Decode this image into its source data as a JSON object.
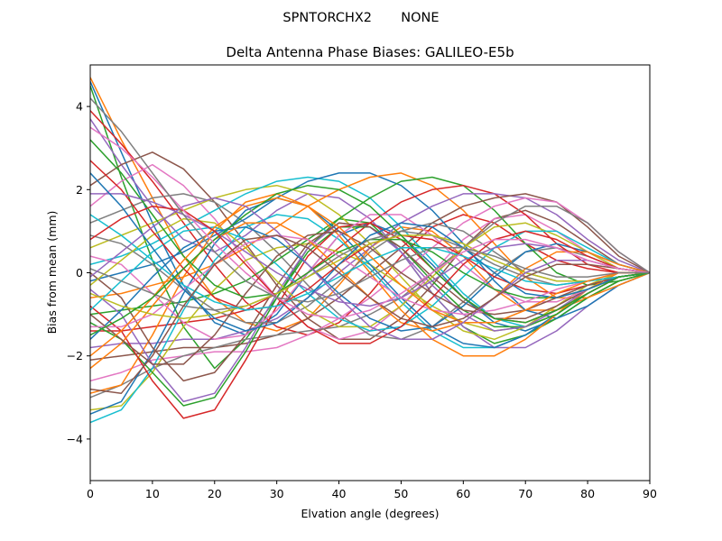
{
  "figure": {
    "suptitle": "SPNTORCHX2       NONE"
  },
  "chart_data": {
    "type": "line",
    "title": "Delta Antenna Phase Biases: GALILEO-E5b",
    "xlabel": "Elvation angle (degrees)",
    "ylabel": "Bias from mean (mm)",
    "xlim": [
      0,
      90
    ],
    "ylim": [
      -5,
      5
    ],
    "xticks": [
      0,
      10,
      20,
      30,
      40,
      50,
      60,
      70,
      80,
      90
    ],
    "yticks": [
      -4,
      -2,
      0,
      2,
      4
    ],
    "xtick_labels": [
      "0",
      "10",
      "20",
      "30",
      "40",
      "50",
      "60",
      "70",
      "80",
      "90"
    ],
    "ytick_labels": [
      "−4",
      "−2",
      "0",
      "2",
      "4"
    ],
    "grid": false,
    "legend": "none",
    "color_cycle": [
      "#1f77b4",
      "#ff7f0e",
      "#2ca02c",
      "#d62728",
      "#9467bd",
      "#8c564b",
      "#e377c2",
      "#7f7f7f",
      "#bcbd22",
      "#17becf"
    ],
    "x": [
      0,
      5,
      10,
      15,
      20,
      25,
      30,
      35,
      40,
      45,
      50,
      55,
      60,
      65,
      70,
      75,
      80,
      85,
      90
    ],
    "series": [
      {
        "values": [
          4.6,
          2.9,
          1.2,
          -0.3,
          -1.2,
          -1.5,
          -1.0,
          0.0,
          0.9,
          1.2,
          0.9,
          0.2,
          -0.6,
          -1.2,
          -1.4,
          -1.1,
          -0.6,
          -0.2,
          0.0
        ]
      },
      {
        "values": [
          4.7,
          3.2,
          1.8,
          0.4,
          -0.6,
          -1.2,
          -1.4,
          -1.1,
          -0.3,
          0.6,
          1.1,
          1.0,
          0.4,
          -0.4,
          -0.9,
          -0.9,
          -0.6,
          -0.2,
          0.0
        ]
      },
      {
        "values": [
          4.5,
          2.3,
          0.3,
          -1.3,
          -2.3,
          -1.6,
          -0.6,
          0.6,
          1.3,
          1.2,
          0.5,
          -0.5,
          -1.3,
          -1.7,
          -1.5,
          -1.1,
          -0.6,
          -0.2,
          0.0
        ]
      },
      {
        "values": [
          3.9,
          3.1,
          2.2,
          1.2,
          0.2,
          -0.7,
          -1.3,
          -1.5,
          -1.2,
          -0.5,
          0.4,
          1.1,
          1.4,
          1.2,
          0.7,
          0.3,
          0.1,
          0.0,
          0.0
        ]
      },
      {
        "values": [
          3.7,
          2.6,
          1.6,
          0.8,
          0.5,
          0.9,
          1.5,
          1.9,
          1.8,
          1.3,
          0.5,
          -0.5,
          -1.3,
          -1.8,
          -1.8,
          -1.4,
          -0.8,
          -0.3,
          0.0
        ]
      },
      {
        "values": [
          2.1,
          2.6,
          2.9,
          2.5,
          1.7,
          0.7,
          -0.3,
          -1.1,
          -1.6,
          -1.6,
          -1.1,
          -0.3,
          0.6,
          1.3,
          1.5,
          1.2,
          0.7,
          0.2,
          0.0
        ]
      },
      {
        "values": [
          1.6,
          2.2,
          2.6,
          2.1,
          1.3,
          0.3,
          -0.6,
          -1.3,
          -1.6,
          -1.4,
          -0.8,
          0.0,
          0.8,
          1.3,
          1.4,
          1.0,
          0.5,
          0.1,
          0.0
        ]
      },
      {
        "values": [
          1.2,
          1.5,
          1.8,
          1.9,
          1.7,
          1.2,
          0.5,
          -0.3,
          -1.0,
          -1.5,
          -1.6,
          -1.3,
          -0.7,
          0.0,
          0.5,
          0.6,
          0.4,
          0.1,
          0.0
        ]
      },
      {
        "values": [
          0.6,
          0.9,
          1.2,
          1.5,
          1.8,
          2.0,
          2.1,
          1.9,
          1.4,
          0.7,
          -0.1,
          -0.9,
          -1.4,
          -1.6,
          -1.3,
          -0.8,
          -0.3,
          0.0,
          0.0
        ]
      },
      {
        "values": [
          0.2,
          0.4,
          0.7,
          1.1,
          1.5,
          1.9,
          2.2,
          2.3,
          2.2,
          1.8,
          1.1,
          0.3,
          -0.5,
          -1.1,
          -1.3,
          -1.0,
          -0.5,
          -0.1,
          0.0
        ]
      },
      {
        "values": [
          -0.2,
          0.0,
          0.2,
          0.5,
          0.9,
          1.3,
          1.8,
          2.2,
          2.4,
          2.4,
          2.1,
          1.5,
          0.7,
          -0.2,
          -0.9,
          -1.1,
          -0.8,
          -0.3,
          0.0
        ]
      },
      {
        "values": [
          -0.6,
          -0.5,
          -0.3,
          -0.1,
          0.2,
          0.6,
          1.1,
          1.6,
          2.0,
          2.3,
          2.4,
          2.1,
          1.5,
          0.7,
          -0.1,
          -0.6,
          -0.6,
          -0.3,
          0.0
        ]
      },
      {
        "values": [
          -1.0,
          -0.9,
          -0.8,
          -0.7,
          -0.5,
          -0.2,
          0.3,
          0.8,
          1.3,
          1.8,
          2.2,
          2.3,
          2.1,
          1.5,
          0.7,
          0.0,
          -0.3,
          -0.2,
          0.0
        ]
      },
      {
        "values": [
          -1.4,
          -1.4,
          -1.3,
          -1.2,
          -1.1,
          -0.9,
          -0.5,
          0.0,
          0.6,
          1.2,
          1.7,
          2.0,
          2.1,
          1.9,
          1.4,
          0.7,
          0.2,
          0.0,
          0.0
        ]
      },
      {
        "values": [
          -1.8,
          -1.7,
          -1.7,
          -1.6,
          -1.6,
          -1.4,
          -1.1,
          -0.6,
          0.0,
          0.6,
          1.2,
          1.6,
          1.9,
          1.9,
          1.8,
          1.4,
          0.8,
          0.3,
          0.0
        ]
      },
      {
        "values": [
          -2.1,
          -2.0,
          -1.9,
          -1.8,
          -1.8,
          -1.7,
          -1.5,
          -1.1,
          -0.6,
          0.0,
          0.6,
          1.2,
          1.6,
          1.8,
          1.9,
          1.7,
          1.1,
          0.4,
          0.0
        ]
      },
      {
        "values": [
          -2.6,
          -2.4,
          -2.1,
          -2.0,
          -1.9,
          -1.9,
          -1.8,
          -1.5,
          -1.1,
          -0.6,
          0.0,
          0.6,
          1.2,
          1.6,
          1.8,
          1.7,
          1.2,
          0.5,
          0.0
        ]
      },
      {
        "values": [
          -3.0,
          -2.7,
          -2.3,
          -2.0,
          -1.8,
          -1.6,
          -1.5,
          -1.4,
          -1.3,
          -1.0,
          -0.6,
          0.0,
          0.6,
          1.2,
          1.6,
          1.6,
          1.2,
          0.5,
          0.0
        ]
      },
      {
        "values": [
          -3.3,
          -3.2,
          -2.4,
          -1.3,
          -0.4,
          0.3,
          0.6,
          0.7,
          0.5,
          0.2,
          -0.3,
          -0.8,
          -1.2,
          -1.4,
          -1.3,
          -1.0,
          -0.5,
          -0.1,
          0.0
        ]
      },
      {
        "values": [
          -3.6,
          -3.3,
          -2.3,
          -0.9,
          0.3,
          1.1,
          1.4,
          1.3,
          0.8,
          0.1,
          -0.7,
          -1.4,
          -1.8,
          -1.8,
          -1.5,
          -1.0,
          -0.5,
          -0.1,
          0.0
        ]
      },
      {
        "values": [
          -3.4,
          -3.1,
          -1.9,
          -0.5,
          0.7,
          1.5,
          1.8,
          1.6,
          1.0,
          0.2,
          -0.6,
          -1.3,
          -1.7,
          -1.8,
          -1.5,
          -1.0,
          -0.5,
          -0.1,
          0.0
        ]
      },
      {
        "values": [
          -2.9,
          -2.7,
          -1.5,
          -0.1,
          1.0,
          1.7,
          1.9,
          1.6,
          0.9,
          0.0,
          -0.9,
          -1.6,
          -2.0,
          -2.0,
          -1.6,
          -1.0,
          -0.4,
          0.0,
          0.0
        ]
      },
      {
        "values": [
          -1.2,
          -1.6,
          -2.4,
          -3.2,
          -3.0,
          -1.9,
          -0.6,
          0.5,
          1.1,
          1.1,
          0.6,
          -0.2,
          -0.9,
          -1.3,
          -1.3,
          -1.0,
          -0.5,
          -0.1,
          0.0
        ]
      },
      {
        "values": [
          -0.8,
          -1.4,
          -2.6,
          -3.5,
          -3.3,
          -2.1,
          -0.8,
          0.4,
          1.1,
          1.2,
          0.8,
          0.1,
          -0.6,
          -1.1,
          -1.2,
          -0.9,
          -0.5,
          -0.1,
          0.0
        ]
      },
      {
        "values": [
          -0.4,
          -1.0,
          -2.2,
          -3.1,
          -2.9,
          -1.8,
          -0.5,
          0.6,
          1.2,
          1.1,
          0.5,
          -0.3,
          -1.0,
          -1.4,
          -1.3,
          -0.9,
          -0.4,
          -0.1,
          0.0
        ]
      },
      {
        "values": [
          0.0,
          -0.6,
          -1.8,
          -2.6,
          -2.4,
          -1.5,
          -0.3,
          0.7,
          1.2,
          1.1,
          0.6,
          -0.1,
          -0.7,
          -1.1,
          -1.1,
          -0.8,
          -0.4,
          -0.1,
          0.0
        ]
      },
      {
        "values": [
          0.4,
          0.2,
          -0.5,
          -1.2,
          -1.6,
          -1.5,
          -0.9,
          0.0,
          0.9,
          1.4,
          1.4,
          0.9,
          0.2,
          -0.4,
          -0.7,
          -0.7,
          -0.4,
          -0.1,
          0.0
        ]
      },
      {
        "values": [
          0.9,
          0.7,
          0.2,
          -0.4,
          -0.9,
          -1.2,
          -1.2,
          -0.8,
          -0.2,
          0.5,
          1.0,
          1.2,
          1.0,
          0.5,
          0.0,
          -0.2,
          -0.2,
          -0.1,
          0.0
        ]
      },
      {
        "values": [
          -0.3,
          0.3,
          0.9,
          1.3,
          1.2,
          0.6,
          -0.2,
          -0.9,
          -1.3,
          -1.3,
          -0.8,
          -0.1,
          0.6,
          1.1,
          1.2,
          0.9,
          0.5,
          0.1,
          0.0
        ]
      },
      {
        "values": [
          -0.9,
          -0.2,
          0.5,
          1.0,
          1.1,
          0.8,
          0.2,
          -0.5,
          -1.1,
          -1.4,
          -1.3,
          -0.8,
          -0.1,
          0.6,
          1.0,
          1.0,
          0.6,
          0.2,
          0.0
        ]
      },
      {
        "values": [
          -1.6,
          -0.9,
          -0.1,
          0.6,
          1.0,
          1.1,
          0.8,
          0.2,
          -0.5,
          -1.1,
          -1.4,
          -1.3,
          -0.8,
          -0.1,
          0.5,
          0.7,
          0.5,
          0.2,
          0.0
        ]
      },
      {
        "values": [
          -2.3,
          -1.7,
          -0.8,
          0.1,
          0.8,
          1.2,
          1.2,
          0.8,
          0.1,
          -0.6,
          -1.2,
          -1.4,
          -1.2,
          -0.6,
          0.1,
          0.5,
          0.5,
          0.2,
          0.0
        ]
      },
      {
        "values": [
          3.2,
          2.4,
          1.4,
          0.4,
          -0.3,
          -0.6,
          -0.5,
          0.0,
          0.5,
          0.8,
          0.8,
          0.5,
          0.0,
          -0.4,
          -0.6,
          -0.6,
          -0.4,
          -0.1,
          0.0
        ]
      },
      {
        "values": [
          2.7,
          2.0,
          1.0,
          0.1,
          -0.6,
          -0.9,
          -0.8,
          -0.4,
          0.2,
          0.7,
          0.9,
          0.8,
          0.4,
          -0.1,
          -0.4,
          -0.5,
          -0.3,
          -0.1,
          0.0
        ]
      },
      {
        "values": [
          1.9,
          1.9,
          1.7,
          1.4,
          1.0,
          0.5,
          0.0,
          -0.4,
          -0.7,
          -0.8,
          -0.6,
          -0.2,
          0.3,
          0.6,
          0.7,
          0.6,
          0.3,
          0.1,
          0.0
        ]
      },
      {
        "values": [
          -1.0,
          -1.6,
          -2.2,
          -2.2,
          -1.5,
          -0.5,
          0.4,
          0.9,
          1.0,
          0.6,
          0.0,
          -0.5,
          -0.9,
          -1.0,
          -0.9,
          -0.6,
          -0.3,
          -0.1,
          0.0
        ]
      },
      {
        "values": [
          -1.3,
          -1.3,
          -1.0,
          -0.4,
          0.2,
          0.7,
          0.9,
          0.8,
          0.4,
          -0.1,
          -0.6,
          -0.9,
          -1.0,
          -0.9,
          -0.7,
          -0.4,
          -0.2,
          0.0,
          0.0
        ]
      },
      {
        "values": [
          0.1,
          -0.2,
          -0.5,
          -0.8,
          -0.9,
          -0.8,
          -0.5,
          -0.1,
          0.4,
          0.8,
          1.0,
          0.9,
          0.6,
          0.2,
          -0.1,
          -0.3,
          -0.2,
          -0.1,
          0.0
        ]
      },
      {
        "values": [
          -0.5,
          -0.8,
          -1.0,
          -1.1,
          -1.0,
          -0.8,
          -0.5,
          -0.1,
          0.3,
          0.7,
          0.9,
          0.9,
          0.7,
          0.3,
          0.0,
          -0.2,
          -0.2,
          -0.1,
          0.0
        ]
      },
      {
        "values": [
          1.4,
          0.9,
          0.3,
          -0.3,
          -0.7,
          -0.9,
          -0.8,
          -0.5,
          -0.1,
          0.3,
          0.6,
          0.6,
          0.4,
          0.1,
          -0.2,
          -0.3,
          -0.2,
          -0.1,
          0.0
        ]
      },
      {
        "values": [
          2.4,
          1.6,
          0.6,
          -0.4,
          -1.1,
          -1.4,
          -1.2,
          -0.6,
          0.2,
          0.9,
          1.2,
          1.1,
          0.6,
          0.0,
          -0.5,
          -0.6,
          -0.4,
          -0.1,
          0.0
        ]
      },
      {
        "values": [
          -2.0,
          -1.4,
          -0.6,
          0.3,
          1.1,
          1.6,
          1.8,
          1.6,
          1.1,
          0.4,
          -0.3,
          -0.9,
          -1.2,
          -1.2,
          -0.9,
          -0.5,
          -0.2,
          0.0,
          0.0
        ]
      },
      {
        "values": [
          -1.5,
          -1.1,
          -0.6,
          0.1,
          0.8,
          1.4,
          1.9,
          2.1,
          2.0,
          1.6,
          0.9,
          0.1,
          -0.6,
          -1.1,
          -1.2,
          -0.9,
          -0.5,
          -0.1,
          0.0
        ]
      },
      {
        "values": [
          0.8,
          1.3,
          1.6,
          1.5,
          1.0,
          0.2,
          -0.6,
          -1.3,
          -1.7,
          -1.7,
          -1.3,
          -0.6,
          0.2,
          0.8,
          1.0,
          0.8,
          0.4,
          0.1,
          0.0
        ]
      },
      {
        "values": [
          -0.1,
          0.5,
          1.1,
          1.6,
          1.8,
          1.6,
          1.0,
          0.2,
          -0.6,
          -1.3,
          -1.6,
          -1.6,
          -1.2,
          -0.6,
          0.0,
          0.3,
          0.3,
          0.1,
          0.0
        ]
      },
      {
        "values": [
          -2.8,
          -2.9,
          -2.0,
          -0.8,
          0.2,
          0.8,
          0.9,
          0.6,
          0.0,
          -0.6,
          -1.1,
          -1.3,
          -1.1,
          -0.6,
          -0.1,
          0.2,
          0.2,
          0.1,
          0.0
        ]
      },
      {
        "values": [
          3.5,
          3.0,
          2.3,
          1.5,
          0.7,
          0.0,
          -0.6,
          -1.0,
          -1.1,
          -0.9,
          -0.5,
          0.0,
          0.5,
          0.8,
          0.8,
          0.6,
          0.3,
          0.1,
          0.0
        ]
      },
      {
        "values": [
          4.2,
          3.4,
          2.4,
          1.4,
          0.5,
          -0.2,
          -0.6,
          -0.7,
          -0.5,
          -0.1,
          0.3,
          0.6,
          0.6,
          0.4,
          0.1,
          -0.1,
          -0.1,
          0.0,
          0.0
        ]
      }
    ]
  }
}
